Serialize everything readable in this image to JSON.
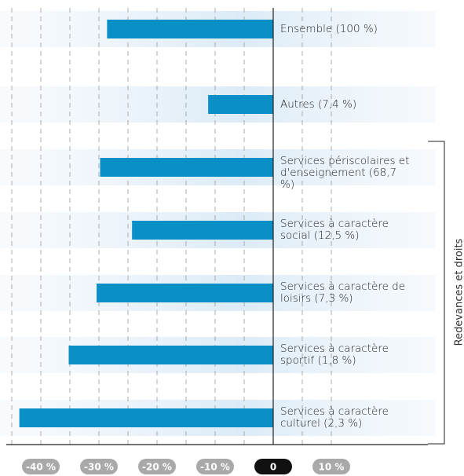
{
  "chart_data": {
    "type": "bar",
    "orientation": "horizontal",
    "categories": [
      "Ensemble (100 %)",
      "Autres (7,4 %)",
      "Services périscolaires et d'enseignement (68,7 %)",
      "Services à caractère social (12,5 %)",
      "Services à caractère de loisirs (7,3 %)",
      "Services à caractère sportif (1,8 %)",
      "Services à caractère culturel (2,3 %)"
    ],
    "values": [
      -28.6,
      -11.2,
      -29.8,
      -24.3,
      -30.4,
      -35.2,
      -43.7
    ],
    "color": "#0a8fc7",
    "xlim": [
      -45,
      10
    ],
    "xticks": [
      {
        "value": -40,
        "label": "-40 %"
      },
      {
        "value": -30,
        "label": "-30 %"
      },
      {
        "value": -20,
        "label": "-20 %"
      },
      {
        "value": -10,
        "label": "-10 %"
      },
      0,
      {
        "value": 10,
        "label": "10 %"
      }
    ],
    "xgridlines": [
      -45,
      -40,
      -35,
      -30,
      -25,
      -20,
      -15,
      -10,
      -5,
      5,
      10
    ],
    "grid": true,
    "group_label": "Redevances et droits"
  }
}
